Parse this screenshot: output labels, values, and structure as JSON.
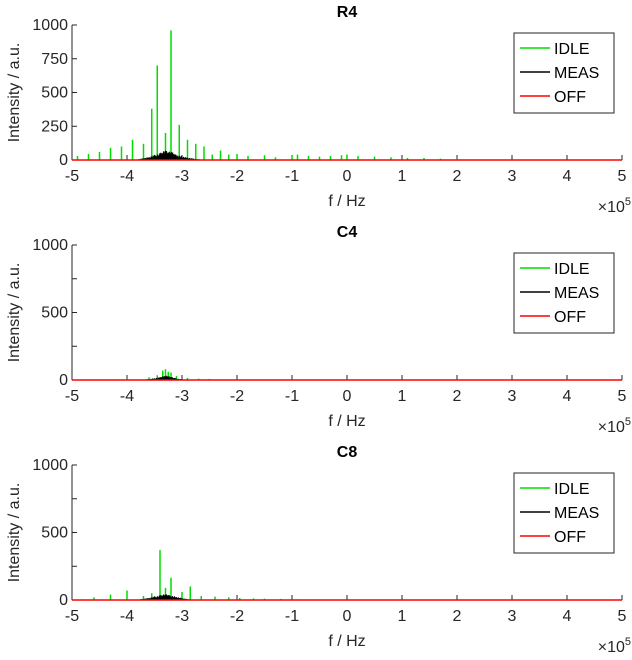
{
  "chart_data": [
    {
      "type": "line",
      "title": "R4",
      "xlabel": "f / Hz",
      "ylabel": "Intensity / a.u.",
      "xlim": [
        -500000,
        500000
      ],
      "ylim": [
        0,
        1000
      ],
      "x_ticks": [
        -5,
        -4,
        -3,
        -2,
        -1,
        0,
        1,
        2,
        3,
        4,
        5
      ],
      "x_tick_labels": [
        "-5",
        "-4",
        "-3",
        "-2",
        "-1",
        "0",
        "1",
        "2",
        "3",
        "4",
        "5"
      ],
      "x_exponent": "×10",
      "x_exponent_power": "5",
      "y_ticks": [
        0,
        250,
        500,
        750,
        1000
      ],
      "y_tick_labels": [
        "0",
        "250",
        "500",
        "750",
        "1000"
      ],
      "legend": {
        "position": "top-right",
        "entries": [
          "IDLE",
          "MEAS",
          "OFF"
        ]
      },
      "series": [
        {
          "name": "IDLE",
          "color": "#00dd00",
          "x": [
            -490000,
            -470000,
            -450000,
            -430000,
            -410000,
            -390000,
            -370000,
            -355000,
            -345000,
            -330000,
            -320000,
            -305000,
            -290000,
            -275000,
            -260000,
            -245000,
            -230000,
            -215000,
            -200000,
            -180000,
            -150000,
            -130000,
            -100000,
            -90000,
            -70000,
            -50000,
            -30000,
            -10000,
            0,
            20000,
            50000,
            80000,
            110000,
            140000,
            170000,
            200000
          ],
          "y": [
            30,
            45,
            60,
            90,
            100,
            150,
            120,
            380,
            700,
            200,
            960,
            260,
            150,
            120,
            100,
            40,
            70,
            40,
            45,
            30,
            35,
            20,
            35,
            40,
            30,
            25,
            30,
            35,
            40,
            30,
            25,
            20,
            15,
            15,
            10,
            10
          ]
        },
        {
          "name": "MEAS",
          "color": "#000000",
          "x": [
            -380000,
            -370000,
            -360000,
            -350000,
            -340000,
            -335000,
            -330000,
            -325000,
            -320000,
            -315000,
            -310000,
            -300000,
            -290000,
            -280000,
            -270000,
            -260000
          ],
          "y": [
            5,
            15,
            25,
            40,
            55,
            65,
            75,
            60,
            70,
            50,
            40,
            30,
            20,
            12,
            6,
            3
          ]
        },
        {
          "name": "OFF",
          "color": "#ff0000",
          "x": [
            -500000,
            500000
          ],
          "y": [
            0,
            0
          ]
        }
      ]
    },
    {
      "type": "line",
      "title": "C4",
      "xlabel": "f / Hz",
      "ylabel": "Intensity / a.u.",
      "xlim": [
        -500000,
        500000
      ],
      "ylim": [
        0,
        1000
      ],
      "x_ticks": [
        -5,
        -4,
        -3,
        -2,
        -1,
        0,
        1,
        2,
        3,
        4,
        5
      ],
      "x_tick_labels": [
        "-5",
        "-4",
        "-3",
        "-2",
        "-1",
        "0",
        "1",
        "2",
        "3",
        "4",
        "5"
      ],
      "x_exponent": "×10",
      "x_exponent_power": "5",
      "y_ticks": [
        0,
        500,
        1000
      ],
      "y_tick_labels": [
        "0",
        "500",
        "1000"
      ],
      "y_minor_ticks": [
        250,
        750
      ],
      "legend": {
        "position": "top-right",
        "entries": [
          "IDLE",
          "MEAS",
          "OFF"
        ]
      },
      "series": [
        {
          "name": "IDLE",
          "color": "#00dd00",
          "x": [
            -400000,
            -360000,
            -345000,
            -335000,
            -330000,
            -325000,
            -320000,
            -310000,
            -290000,
            -270000,
            -250000
          ],
          "y": [
            10,
            20,
            35,
            70,
            80,
            60,
            55,
            30,
            15,
            10,
            8
          ]
        },
        {
          "name": "MEAS",
          "color": "#000000",
          "x": [
            -370000,
            -360000,
            -350000,
            -340000,
            -335000,
            -330000,
            -325000,
            -320000,
            -315000,
            -310000,
            -300000,
            -290000
          ],
          "y": [
            3,
            8,
            15,
            22,
            28,
            35,
            30,
            25,
            18,
            12,
            6,
            3
          ]
        },
        {
          "name": "OFF",
          "color": "#ff0000",
          "x": [
            -500000,
            500000
          ],
          "y": [
            0,
            0
          ]
        }
      ]
    },
    {
      "type": "line",
      "title": "C8",
      "xlabel": "f / Hz",
      "ylabel": "Intensity / a.u.",
      "xlim": [
        -500000,
        500000
      ],
      "ylim": [
        0,
        1000
      ],
      "x_ticks": [
        -5,
        -4,
        -3,
        -2,
        -1,
        0,
        1,
        2,
        3,
        4,
        5
      ],
      "x_tick_labels": [
        "-5",
        "-4",
        "-3",
        "-2",
        "-1",
        "0",
        "1",
        "2",
        "3",
        "4",
        "5"
      ],
      "x_exponent": "×10",
      "x_exponent_power": "5",
      "y_ticks": [
        0,
        500,
        1000
      ],
      "y_tick_labels": [
        "0",
        "500",
        "1000"
      ],
      "y_minor_ticks": [
        250,
        750
      ],
      "legend": {
        "position": "top-right",
        "entries": [
          "IDLE",
          "MEAS",
          "OFF"
        ]
      },
      "series": [
        {
          "name": "IDLE",
          "color": "#00dd00",
          "x": [
            -460000,
            -430000,
            -400000,
            -370000,
            -355000,
            -340000,
            -330000,
            -320000,
            -300000,
            -285000,
            -265000,
            -240000,
            -215000,
            -195000,
            -170000,
            -150000,
            -120000,
            -90000
          ],
          "y": [
            20,
            40,
            70,
            30,
            50,
            370,
            90,
            165,
            60,
            100,
            30,
            25,
            20,
            15,
            12,
            10,
            8,
            5
          ]
        },
        {
          "name": "MEAS",
          "color": "#000000",
          "x": [
            -380000,
            -370000,
            -360000,
            -350000,
            -340000,
            -335000,
            -330000,
            -325000,
            -320000,
            -310000,
            -300000,
            -290000,
            -280000
          ],
          "y": [
            4,
            10,
            18,
            28,
            38,
            42,
            45,
            40,
            35,
            25,
            15,
            8,
            3
          ]
        },
        {
          "name": "OFF",
          "color": "#ff0000",
          "x": [
            -500000,
            500000
          ],
          "y": [
            0,
            0
          ]
        }
      ]
    }
  ]
}
